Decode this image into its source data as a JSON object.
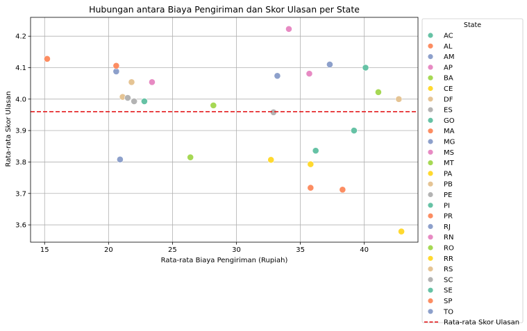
{
  "chart_data": {
    "type": "scatter",
    "title": "Hubungan antara Biaya Pengiriman dan Skor Ulasan per State",
    "xlabel": "Rata-rata Biaya Pengiriman (Rupiah)",
    "ylabel": "Rata-rata Skor Ulasan",
    "xlim": [
      13.9,
      44.2
    ],
    "ylim": [
      3.545,
      4.26
    ],
    "xticks": [
      15,
      20,
      25,
      30,
      35,
      40
    ],
    "yticks": [
      3.6,
      3.7,
      3.8,
      3.9,
      4.0,
      4.1,
      4.2
    ],
    "grid": true,
    "legend_title": "State",
    "legend_position": "outside-right",
    "reference_line": {
      "label": "Rata-rata Skor Ulasan",
      "y": 3.96,
      "color": "#e41a1c",
      "style": "dashed"
    },
    "palette": [
      "#66c2a5",
      "#fc8d62",
      "#8da0cb",
      "#e78ac3",
      "#a6d854",
      "#ffd92f",
      "#e5c494",
      "#b3b3b3"
    ],
    "points": [
      {
        "state": "AC",
        "x": 40.1,
        "y": 4.1,
        "color": "#66c2a5"
      },
      {
        "state": "AL",
        "x": 35.8,
        "y": 3.718,
        "color": "#fc8d62"
      },
      {
        "state": "AM",
        "x": 33.2,
        "y": 4.074,
        "color": "#8da0cb"
      },
      {
        "state": "AP",
        "x": 34.1,
        "y": 4.223,
        "color": "#e78ac3"
      },
      {
        "state": "BA",
        "x": 26.4,
        "y": 3.815,
        "color": "#a6d854"
      },
      {
        "state": "CE",
        "x": 32.7,
        "y": 3.807,
        "color": "#ffd92f"
      },
      {
        "state": "DF",
        "x": 21.1,
        "y": 4.007,
        "color": "#e5c494"
      },
      {
        "state": "ES",
        "x": 22.0,
        "y": 3.993,
        "color": "#b3b3b3"
      },
      {
        "state": "GO",
        "x": 22.8,
        "y": 3.993,
        "color": "#66c2a5"
      },
      {
        "state": "MA",
        "x": 38.3,
        "y": 3.712,
        "color": "#fc8d62"
      },
      {
        "state": "MG",
        "x": 20.6,
        "y": 4.088,
        "color": "#8da0cb"
      },
      {
        "state": "MS",
        "x": 23.4,
        "y": 4.054,
        "color": "#e78ac3"
      },
      {
        "state": "MT",
        "x": 28.2,
        "y": 3.98,
        "color": "#a6d854"
      },
      {
        "state": "PA",
        "x": 35.8,
        "y": 3.793,
        "color": "#ffd92f"
      },
      {
        "state": "PB",
        "x": 42.7,
        "y": 4.0,
        "color": "#e5c494"
      },
      {
        "state": "PE",
        "x": 32.9,
        "y": 3.958,
        "color": "#b3b3b3"
      },
      {
        "state": "PI",
        "x": 39.2,
        "y": 3.9,
        "color": "#66c2a5"
      },
      {
        "state": "PR",
        "x": 20.6,
        "y": 4.106,
        "color": "#fc8d62"
      },
      {
        "state": "RJ",
        "x": 20.9,
        "y": 3.808,
        "color": "#8da0cb"
      },
      {
        "state": "RN",
        "x": 35.7,
        "y": 4.081,
        "color": "#e78ac3"
      },
      {
        "state": "RO",
        "x": 41.1,
        "y": 4.022,
        "color": "#a6d854"
      },
      {
        "state": "RR",
        "x": 42.9,
        "y": 3.579,
        "color": "#ffd92f"
      },
      {
        "state": "RS",
        "x": 21.8,
        "y": 4.054,
        "color": "#e5c494"
      },
      {
        "state": "SC",
        "x": 21.5,
        "y": 4.004,
        "color": "#b3b3b3"
      },
      {
        "state": "SE",
        "x": 36.2,
        "y": 3.836,
        "color": "#66c2a5"
      },
      {
        "state": "SP",
        "x": 15.2,
        "y": 4.128,
        "color": "#fc8d62"
      },
      {
        "state": "TO",
        "x": 37.3,
        "y": 4.11,
        "color": "#8da0cb"
      }
    ]
  }
}
